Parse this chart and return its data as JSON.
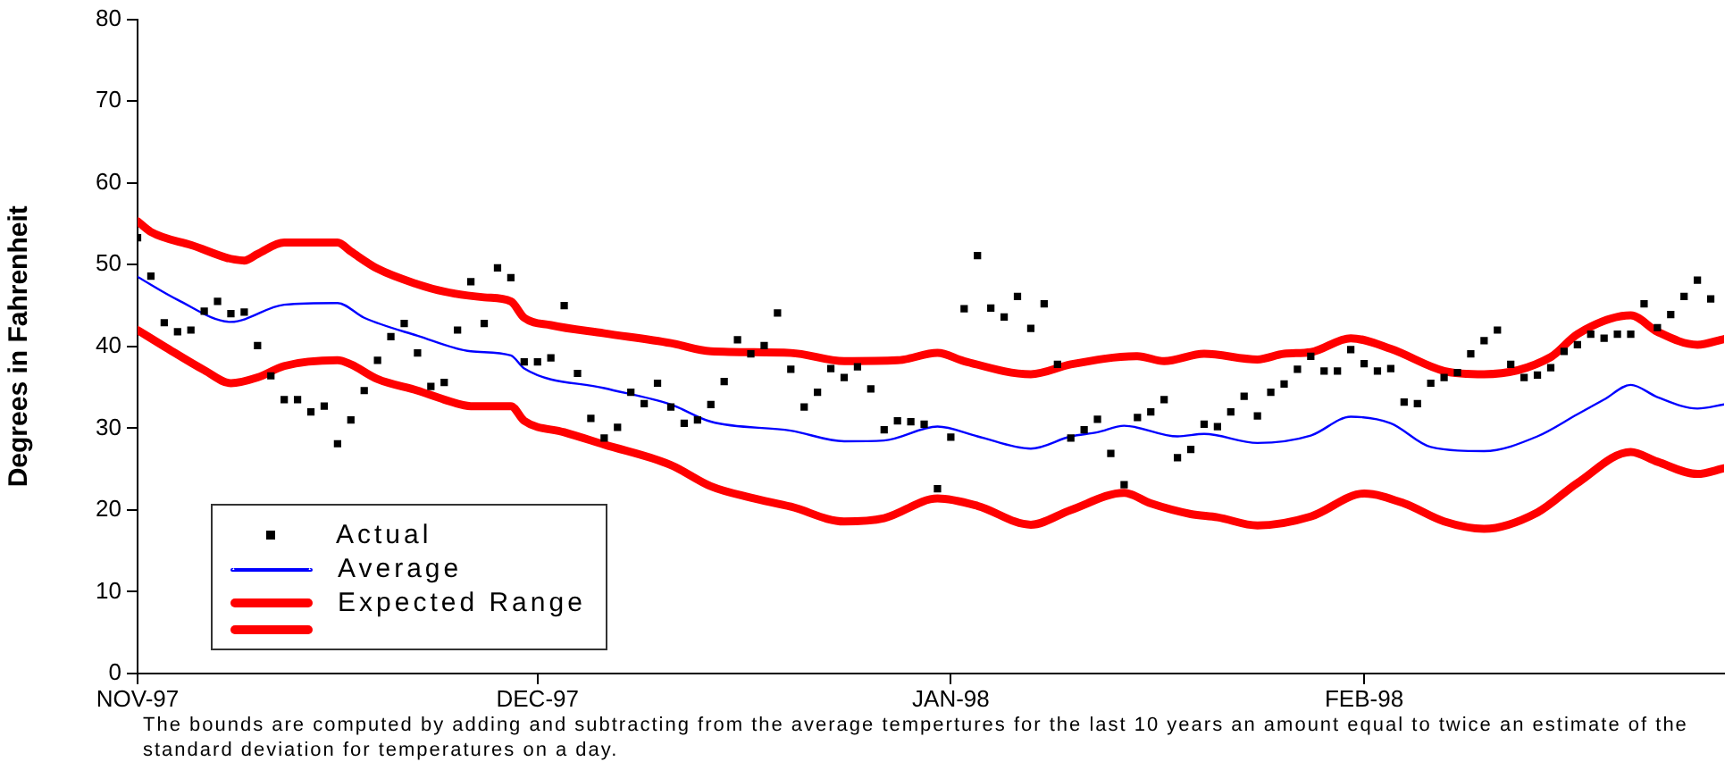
{
  "chart_data": {
    "type": "line",
    "ylabel": "Degrees in Fahrenheit",
    "xlim": [
      "1997-11-01",
      "1998-02-28"
    ],
    "xticks": [
      {
        "value": "1997-11-01",
        "label": "NOV-97"
      },
      {
        "value": "1997-12-01",
        "label": "DEC-97"
      },
      {
        "value": "1998-01-01",
        "label": "JAN-98"
      },
      {
        "value": "1998-02-01",
        "label": "FEB-98"
      }
    ],
    "ylim": [
      0,
      80
    ],
    "yticks": [
      0,
      10,
      20,
      30,
      40,
      50,
      60,
      70,
      80
    ],
    "grid": false,
    "legend": "bottom left",
    "annotations": [
      "The bounds are computed by adding and subtracting from the average tempertures for the last 10 years an amount equal to twice an estimate of the standard deviation for temperatures on a day."
    ],
    "series": [
      {
        "name": "Actual",
        "type": "scatter",
        "marker": "square",
        "color": "#000000",
        "x": [
          "1997-11-01",
          "1997-11-02",
          "1997-11-03",
          "1997-11-04",
          "1997-11-05",
          "1997-11-06",
          "1997-11-07",
          "1997-11-08",
          "1997-11-09",
          "1997-11-10",
          "1997-11-11",
          "1997-11-12",
          "1997-11-13",
          "1997-11-14",
          "1997-11-15",
          "1997-11-16",
          "1997-11-17",
          "1997-11-18",
          "1997-11-19",
          "1997-11-20",
          "1997-11-21",
          "1997-11-22",
          "1997-11-23",
          "1997-11-24",
          "1997-11-25",
          "1997-11-26",
          "1997-11-27",
          "1997-11-28",
          "1997-11-29",
          "1997-11-30",
          "1997-12-01",
          "1997-12-02",
          "1997-12-03",
          "1997-12-04",
          "1997-12-05",
          "1997-12-06",
          "1997-12-07",
          "1997-12-08",
          "1997-12-09",
          "1997-12-10",
          "1997-12-11",
          "1997-12-12",
          "1997-12-13",
          "1997-12-14",
          "1997-12-15",
          "1997-12-16",
          "1997-12-17",
          "1997-12-18",
          "1997-12-19",
          "1997-12-20",
          "1997-12-21",
          "1997-12-22",
          "1997-12-23",
          "1997-12-24",
          "1997-12-25",
          "1997-12-26",
          "1997-12-27",
          "1997-12-28",
          "1997-12-29",
          "1997-12-30",
          "1997-12-31",
          "1998-01-01",
          "1998-01-02",
          "1998-01-03",
          "1998-01-04",
          "1998-01-05",
          "1998-01-06",
          "1998-01-07",
          "1998-01-08",
          "1998-01-09",
          "1998-01-10",
          "1998-01-11",
          "1998-01-12",
          "1998-01-13",
          "1998-01-14",
          "1998-01-15",
          "1998-01-16",
          "1998-01-17",
          "1998-01-18",
          "1998-01-19",
          "1998-01-20",
          "1998-01-21",
          "1998-01-22",
          "1998-01-23",
          "1998-01-24",
          "1998-01-25",
          "1998-01-26",
          "1998-01-27",
          "1998-01-28",
          "1998-01-29",
          "1998-01-30",
          "1998-01-31",
          "1998-02-01",
          "1998-02-02",
          "1998-02-03",
          "1998-02-04",
          "1998-02-05",
          "1998-02-06",
          "1998-02-07",
          "1998-02-08",
          "1998-02-09",
          "1998-02-10",
          "1998-02-11",
          "1998-02-12",
          "1998-02-13",
          "1998-02-14",
          "1998-02-15",
          "1998-02-16",
          "1998-02-17",
          "1998-02-18",
          "1998-02-19",
          "1998-02-20",
          "1998-02-21",
          "1998-02-22",
          "1998-02-23",
          "1998-02-24",
          "1998-02-25",
          "1998-02-26",
          "1998-02-27"
        ],
        "values": [
          53.3,
          48.6,
          42.9,
          41.8,
          42,
          44.3,
          45.5,
          44,
          44.2,
          40.1,
          36.4,
          33.5,
          33.5,
          32,
          32.7,
          28.1,
          31,
          34.6,
          38.3,
          41.2,
          42.8,
          39.2,
          35.1,
          35.6,
          42,
          47.9,
          42.8,
          49.6,
          48.4,
          38.1,
          38.1,
          38.6,
          45,
          36.7,
          31.2,
          28.8,
          30.1,
          34.4,
          33,
          35.5,
          32.6,
          30.6,
          31,
          32.9,
          35.7,
          40.8,
          39.1,
          40.1,
          44.1,
          37.2,
          32.6,
          34.4,
          37.3,
          36.2,
          37.5,
          34.8,
          29.8,
          30.9,
          30.8,
          30.5,
          22.6,
          28.9,
          44.6,
          51.1,
          44.7,
          43.6,
          46.1,
          42.2,
          45.2,
          37.8,
          28.8,
          29.8,
          31.1,
          26.9,
          23.1,
          31.3,
          32,
          33.5,
          26.4,
          27.4,
          30.5,
          30.2,
          32,
          33.9,
          31.5,
          34.4,
          35.4,
          37.2,
          38.8,
          37,
          37,
          39.6,
          37.9,
          37,
          37.3,
          33.2,
          33,
          35.5,
          36.2,
          36.8,
          39.1,
          40.7,
          42,
          37.8,
          36.2,
          36.5,
          37.4,
          39.4,
          40.2,
          41.5,
          41,
          41.5,
          41.5,
          45.2,
          42.3,
          43.9,
          46.1,
          48.1,
          45.8
        ]
      },
      {
        "name": "Average",
        "color": "#0000ff",
        "x": [
          "1997-11-01",
          "1997-11-04",
          "1997-11-08",
          "1997-11-12",
          "1997-11-16",
          "1997-11-18",
          "1997-11-22",
          "1997-11-26",
          "1997-11-29",
          "1997-11-30",
          "1997-12-06",
          "1997-12-11",
          "1997-12-14",
          "1997-12-20",
          "1997-12-24",
          "1997-12-27",
          "1997-12-31",
          "1998-01-03",
          "1998-01-07",
          "1998-01-10",
          "1998-01-12",
          "1998-01-14",
          "1998-01-18",
          "1998-01-20",
          "1998-01-24",
          "1998-01-28",
          "1998-01-31",
          "1998-02-03",
          "1998-02-06",
          "1998-02-10",
          "1998-02-14",
          "1998-02-17",
          "1998-02-19",
          "1998-02-21",
          "1998-02-23",
          "1998-02-26",
          "1998-02-28"
        ],
        "values": [
          48.5,
          45.7,
          43,
          45.1,
          45.3,
          43.5,
          41.3,
          39.4,
          38.9,
          37.3,
          34.9,
          32.9,
          30.8,
          29.7,
          28.4,
          28.5,
          30.2,
          29,
          27.5,
          29,
          29.5,
          30.3,
          29,
          29.3,
          28.2,
          29.1,
          31.4,
          30.6,
          27.7,
          27.2,
          29,
          31.7,
          33.5,
          35.3,
          33.8,
          32.4,
          32.9
        ]
      },
      {
        "name": "Expected Range",
        "color": "#ff0000",
        "x": [
          "1997-11-01",
          "1997-11-02",
          "1997-11-05",
          "1997-11-09",
          "1997-11-10",
          "1997-11-12",
          "1997-11-16",
          "1997-11-17",
          "1997-11-19",
          "1997-11-22",
          "1997-11-24",
          "1997-11-27",
          "1997-11-29",
          "1997-11-30",
          "1997-12-02",
          "1997-12-06",
          "1997-12-11",
          "1997-12-14",
          "1997-12-20",
          "1997-12-24",
          "1997-12-28",
          "1997-12-31",
          "1998-01-02",
          "1998-01-07",
          "1998-01-10",
          "1998-01-15",
          "1998-01-17",
          "1998-01-20",
          "1998-01-24",
          "1998-01-26",
          "1998-01-28",
          "1998-01-31",
          "1998-02-03",
          "1998-02-07",
          "1998-02-10",
          "1998-02-15",
          "1998-02-17",
          "1998-02-21",
          "1998-02-23",
          "1998-02-26",
          "1998-02-28"
        ],
        "values": [
          55.3,
          54,
          52.4,
          50.5,
          51.3,
          52.7,
          52.7,
          51.6,
          49.5,
          47.6,
          46.7,
          46,
          45.5,
          43.5,
          42.6,
          41.6,
          40.4,
          39.4,
          39.2,
          38.2,
          38.3,
          39.2,
          38.2,
          36.6,
          37.8,
          38.8,
          38.2,
          39.1,
          38.4,
          39.1,
          39.3,
          41,
          39.7,
          37,
          36.6,
          38.7,
          41.5,
          43.8,
          41.8,
          40.2,
          40.9
        ]
      },
      {
        "color": "#ff0000",
        "x": [
          "1997-11-01",
          "1997-11-03",
          "1997-11-06",
          "1997-11-08",
          "1997-11-10",
          "1997-11-12",
          "1997-11-16",
          "1997-11-17",
          "1997-11-19",
          "1997-11-22",
          "1997-11-24",
          "1997-11-26",
          "1997-11-29",
          "1997-11-30",
          "1997-12-03",
          "1997-12-06",
          "1997-12-11",
          "1997-12-14",
          "1997-12-17",
          "1997-12-20",
          "1997-12-24",
          "1997-12-27",
          "1997-12-31",
          "1998-01-03",
          "1998-01-07",
          "1998-01-10",
          "1998-01-14",
          "1998-01-16",
          "1998-01-19",
          "1998-01-21",
          "1998-01-24",
          "1998-01-28",
          "1998-02-01",
          "1998-02-04",
          "1998-02-07",
          "1998-02-10",
          "1998-02-14",
          "1998-02-17",
          "1998-02-21",
          "1998-02-23",
          "1998-02-26",
          "1998-02-28"
        ],
        "values": [
          42,
          40,
          37.1,
          35.5,
          36.2,
          37.6,
          38.3,
          37.8,
          36,
          34.6,
          33.5,
          32.7,
          32.7,
          30.9,
          29.5,
          28,
          25.5,
          22.9,
          21.5,
          20.4,
          18.6,
          19,
          21.4,
          20.5,
          18.2,
          20,
          22.1,
          20.8,
          19.5,
          19.1,
          18.1,
          19.2,
          22,
          20.8,
          18.6,
          17.7,
          19.7,
          23.3,
          27.1,
          25.9,
          24.4,
          25.1
        ]
      }
    ]
  }
}
